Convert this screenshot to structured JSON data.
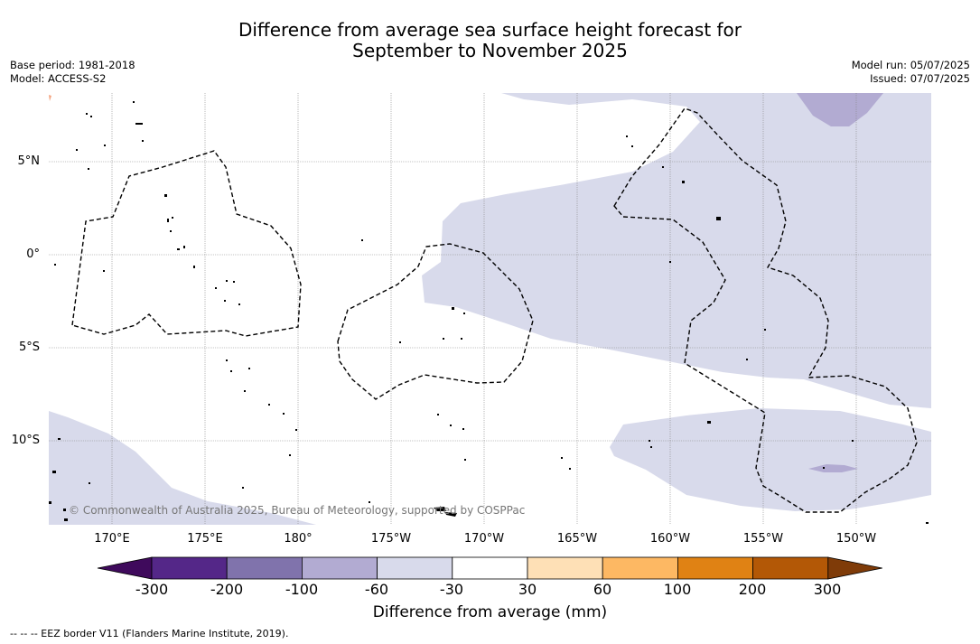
{
  "title_line1": "Difference from average sea surface height forecast for",
  "title_line2": "September to November 2025",
  "meta_left": {
    "base_period": "Base period: 1981-2018",
    "model": "Model: ACCESS-S2"
  },
  "meta_right": {
    "model_run": "Model run: 05/07/2025",
    "issued": "Issued: 07/07/2025"
  },
  "map": {
    "lon_labels": [
      "170°E",
      "175°E",
      "180°",
      "175°W",
      "170°W",
      "165°W",
      "160°W",
      "155°W",
      "150°W"
    ],
    "lat_labels": [
      "5°N",
      "0°",
      "5°S",
      "10°S"
    ],
    "credit": "© Commonwealth of Australia 2025, Bureau of Meteorology, supported by COSPPac"
  },
  "colorbar": {
    "ticks": [
      "-300",
      "-200",
      "-100",
      "-60",
      "-30",
      "30",
      "60",
      "100",
      "200",
      "300"
    ],
    "colors": [
      "#3f0a5c",
      "#542788",
      "#8073ac",
      "#b2abd2",
      "#d8daeb",
      "#ffffff",
      "#fee0b6",
      "#fdb863",
      "#e08214",
      "#b35806",
      "#7f3b08"
    ],
    "label": "Difference from average (mm)"
  },
  "footnote": "--  --  -- EEZ border V11 (Flanders Marine Institute, 2019)."
}
